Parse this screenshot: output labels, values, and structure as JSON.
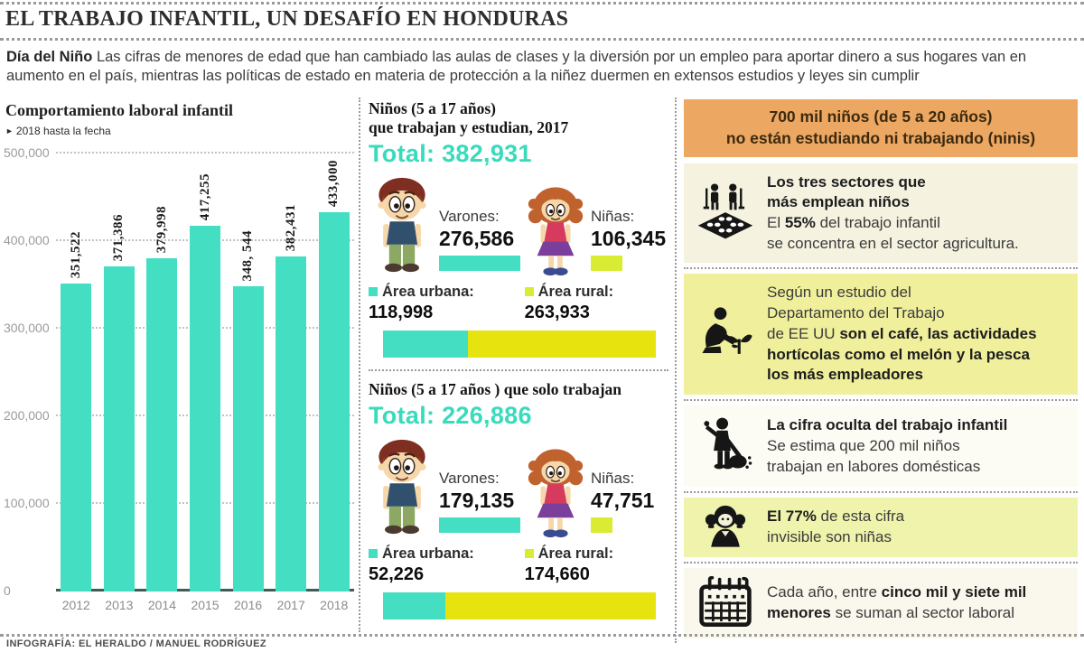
{
  "colors": {
    "teal": "#44dec2",
    "teal_text": "#38dbbc",
    "lime": "#d9ec33",
    "yellow": "#e7e30e",
    "orange_banner": "#eca763",
    "cream_block": "#f5f2e0",
    "yellow_block": "#f0ef9c",
    "bar_label": "#1b1b1b"
  },
  "header": {
    "title": "EL TRABAJO INFANTIL, UN DESAFÍO EN HONDURAS",
    "intro_parts": [
      {
        "t": "Día del Niño ",
        "b": true
      },
      {
        "t": "Las cifras de menores de edad que han cambiado las aulas de clases y la diversión por un empleo para aportar dinero a sus hogares van en aumento en el país, mientras las políticas de estado en materia de protección a la niñez duermen en extensos estudios y leyes sin cumplir",
        "b": false
      }
    ]
  },
  "chart": {
    "title": "Comportamiento laboral infantil",
    "note_bullet": "►",
    "note": "2018 hasta la fecha",
    "ymax": 500000,
    "yticks": [
      {
        "label": "500,000",
        "value": 500000
      },
      {
        "label": "400,000",
        "value": 400000
      },
      {
        "label": "300,000",
        "value": 300000
      },
      {
        "label": "200,000",
        "value": 200000
      },
      {
        "label": "100,000",
        "value": 100000
      },
      {
        "label": "0",
        "value": 0
      }
    ],
    "years": [
      "2012",
      "2013",
      "2014",
      "2015",
      "2016",
      "2017",
      "2018"
    ],
    "labels": [
      "351,522",
      "371,386",
      "379,998",
      "417,255",
      "348, 544",
      "382,431",
      "433,000"
    ],
    "values": [
      351522,
      371386,
      379998,
      417255,
      348544,
      382431,
      433000
    ]
  },
  "mid": {
    "sections": [
      {
        "title_lines": [
          "Niños (5 a 17 años)",
          "que trabajan y estudian, 2017"
        ],
        "total": "Total: 382,931",
        "varones_label": "Varones:",
        "varones_value": "276,586",
        "ninas_label": "Niñas:",
        "ninas_value": "106,345",
        "urban_label": "Área urbana:",
        "urban_value": "118,998",
        "rural_label": "Área rural:",
        "rural_value": "263,933"
      },
      {
        "title_lines": [
          "Niños (5 a 17 años ) que solo trabajan"
        ],
        "total": "Total: 226,886",
        "varones_label": "Varones:",
        "varones_value": "179,135",
        "ninas_label": "Niñas:",
        "ninas_value": "47,751",
        "urban_label": "Área urbana:",
        "urban_value": "52,226",
        "rural_label": "Área rural:",
        "rural_value": "174,660"
      }
    ]
  },
  "right": {
    "banner_lines": [
      "700 mil niños (de 5 a 20 años)",
      "no están estudiando ni trabajando (ninis)"
    ],
    "blocks": [
      {
        "icon": "farmers-field-icon",
        "bg": "#f5f2e0",
        "parts": [
          {
            "t": "Los tres sectores que\nmás emplean niños\n",
            "b": true
          },
          {
            "t": "El ",
            "b": false
          },
          {
            "t": "55%",
            "b": true
          },
          {
            "t": " del trabajo infantil\nse concentra en el sector agricultura.",
            "b": false
          }
        ]
      },
      {
        "icon": "planting-icon",
        "bg": "#f0ef9c",
        "parts": [
          {
            "t": "Según un estudio del\nDepartamento del Trabajo\nde EE UU ",
            "b": false
          },
          {
            "t": "son el café, las actividades\nhortícolas como el melón y la pesca\nlos más empleadores",
            "b": true
          }
        ]
      },
      {
        "icon": "domestic-work-icon",
        "bg": "#fcfbf4",
        "parts": [
          {
            "t": "La cifra oculta del trabajo infantil\n",
            "b": true
          },
          {
            "t": "Se estima que 200 mil niños\ntrabajan en labores domésticas",
            "b": false
          }
        ]
      },
      {
        "icon": "girl-icon",
        "bg": "#eff3ac",
        "parts": [
          {
            "t": "El 77%",
            "b": true
          },
          {
            "t": " de esta cifra\ninvisible son niñas",
            "b": false
          }
        ]
      },
      {
        "icon": "calendar-icon",
        "bg": "#faf8ec",
        "parts": [
          {
            "t": "Cada año, entre ",
            "b": false
          },
          {
            "t": "cinco mil y siete mil\nmenores",
            "b": true
          },
          {
            "t": " se suman al sector laboral",
            "b": false
          }
        ]
      }
    ]
  },
  "footer": {
    "credit": "INFOGRAFÍA: EL HERALDO / MANUEL RODRÍGUEZ"
  },
  "chart_data": [
    {
      "type": "bar",
      "title": "Comportamiento laboral infantil",
      "subtitle": "2018 hasta la fecha",
      "categories": [
        "2012",
        "2013",
        "2014",
        "2015",
        "2016",
        "2017",
        "2018"
      ],
      "values": [
        351522,
        371386,
        379998,
        417255,
        348544,
        382431,
        433000
      ],
      "xlabel": "",
      "ylabel": "",
      "ylim": [
        0,
        500000
      ],
      "yticks": [
        0,
        100000,
        200000,
        300000,
        400000,
        500000
      ],
      "grid": true,
      "bar_color": "#44dec2"
    },
    {
      "type": "bar",
      "title": "Niños (5 a 17 años) que trabajan y estudian, 2017",
      "total": 382931,
      "categories": [
        "Varones",
        "Niñas",
        "Área urbana",
        "Área rural"
      ],
      "values": [
        276586,
        106345,
        118998,
        263933
      ]
    },
    {
      "type": "bar",
      "title": "Niños (5 a 17 años) que solo trabajan",
      "total": 226886,
      "categories": [
        "Varones",
        "Niñas",
        "Área urbana",
        "Área rural"
      ],
      "values": [
        179135,
        47751,
        52226,
        174660
      ]
    }
  ]
}
